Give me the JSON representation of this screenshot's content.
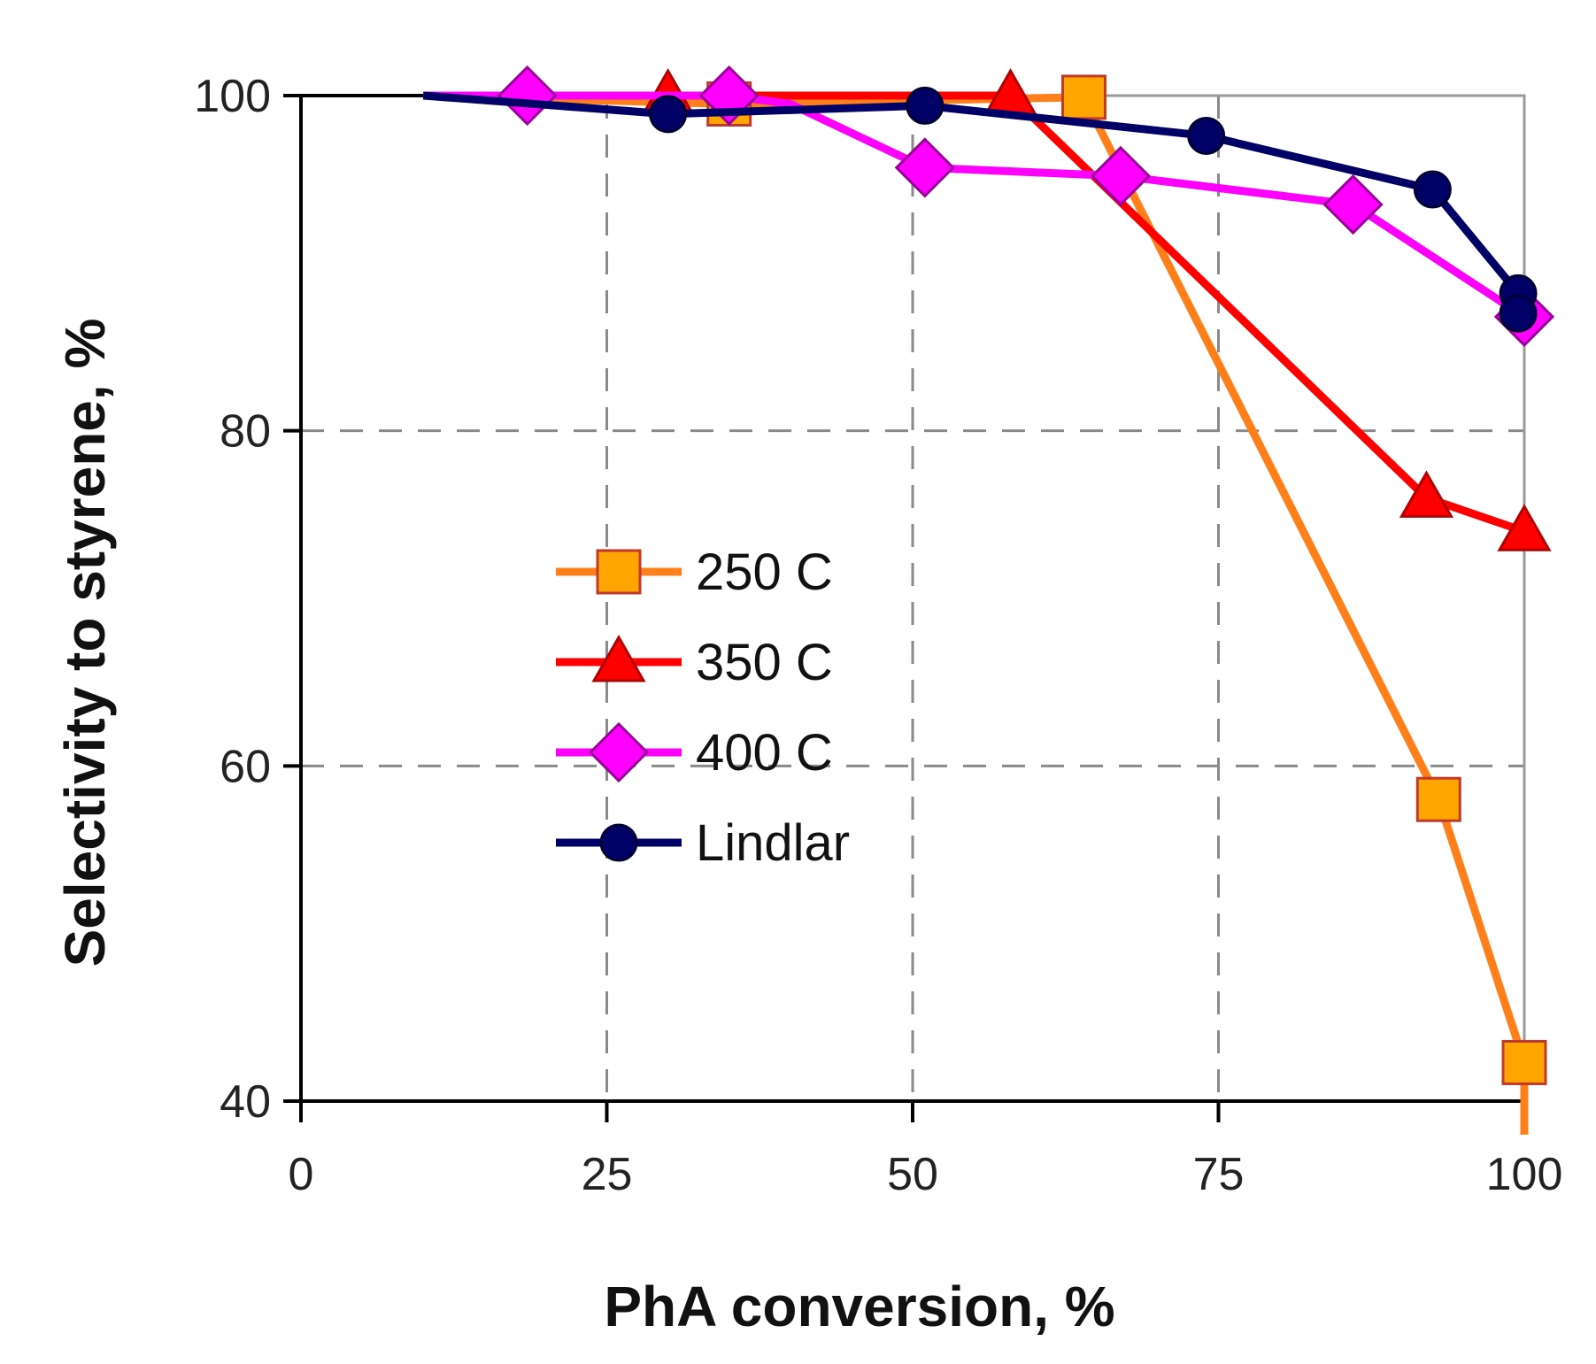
{
  "chart_data": {
    "type": "line",
    "title": "",
    "xlabel": "PhA conversion, %",
    "ylabel": "Selectivity to styrene, %",
    "xlim": [
      0,
      100
    ],
    "ylim": [
      40,
      100
    ],
    "xticks": [
      "0",
      "25",
      "50",
      "75",
      "100"
    ],
    "xtick_values": [
      0,
      25,
      50,
      75,
      100
    ],
    "yticks": [
      "40",
      "60",
      "80",
      "100"
    ],
    "ytick_values": [
      40,
      60,
      80,
      100
    ],
    "grid": "dashed",
    "legend_position": "center-left",
    "series": [
      {
        "name": "250 C",
        "color": "#FF7F1A",
        "marker_fill": "#FFA500",
        "marker_edge": "#C0392B",
        "marker": "square",
        "x": [
          10,
          35,
          64,
          93,
          100,
          100
        ],
        "y": [
          100,
          99.5,
          99.9,
          58,
          42.3,
          38
        ],
        "marker_points": [
          1,
          2,
          3,
          4
        ]
      },
      {
        "name": "350 C",
        "color": "#FF0000",
        "marker_fill": "#FF0000",
        "marker_edge": "#B00000",
        "marker": "triangle",
        "x": [
          10,
          30,
          58,
          92,
          100
        ],
        "y": [
          100,
          100,
          100,
          76,
          74
        ],
        "marker_points": [
          1,
          2,
          3,
          4
        ]
      },
      {
        "name": "400 C",
        "color": "#FF00FF",
        "marker_fill": "#FF00FF",
        "marker_edge": "#990099",
        "marker": "diamond",
        "x": [
          10,
          18.5,
          35,
          40,
          51,
          67,
          86,
          100
        ],
        "y": [
          100,
          100,
          100,
          99.5,
          95.7,
          95.2,
          93.5,
          86.8
        ],
        "marker_points": [
          1,
          2,
          4,
          5,
          6,
          7
        ]
      },
      {
        "name": "Lindlar",
        "color": "#000066",
        "marker_fill": "#000066",
        "marker_edge": "#000033",
        "marker": "circle",
        "x": [
          10,
          30,
          51,
          74,
          92.5,
          99.5,
          99.5
        ],
        "y": [
          100,
          98.9,
          99.4,
          97.6,
          94.4,
          88.2,
          87.0
        ],
        "marker_points": [
          1,
          2,
          3,
          4,
          5,
          6
        ]
      }
    ]
  }
}
